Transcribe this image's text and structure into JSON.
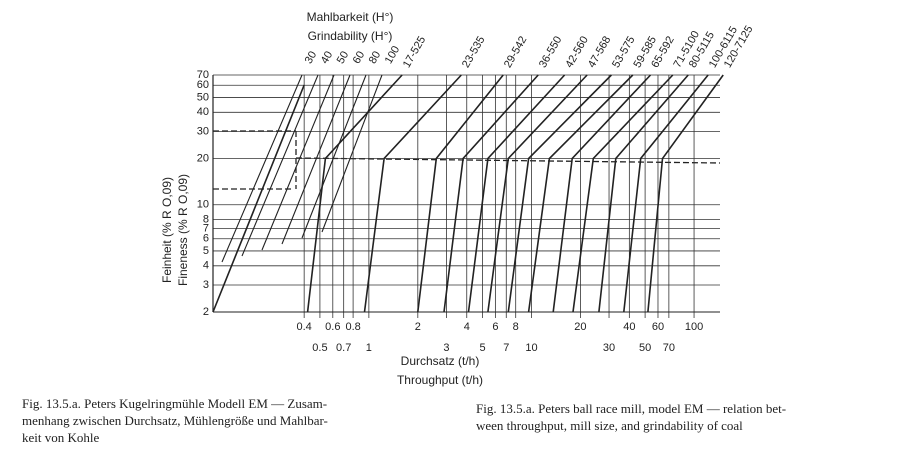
{
  "chart_data": {
    "type": "line",
    "title": "Mahlbarkeit (H°)",
    "subtitle": "Grindability (H°)",
    "y_label": "Feinheit (% R O,09)",
    "y_label_2": "Fineness (% R O,09)",
    "x_label": "Durchsatz (t/h)",
    "x_label_2": "Throughput (t/h)",
    "log_x": true,
    "log_y": true,
    "grid": true,
    "color": "#222",
    "xlim": [
      0.11,
      155
    ],
    "ylim": [
      2,
      70
    ],
    "xticks": [
      0.4,
      0.5,
      0.6,
      0.7,
      0.8,
      1,
      2,
      3,
      4,
      5,
      6,
      7,
      8,
      10,
      20,
      30,
      40,
      50,
      60,
      70,
      100
    ],
    "yticks": [
      2,
      3,
      4,
      5,
      6,
      7,
      8,
      10,
      20,
      30,
      40,
      50,
      60,
      70
    ],
    "grindability_lines": [
      "30",
      "40",
      "50",
      "60",
      "80",
      "100"
    ],
    "series": [
      {
        "name": "17-525",
        "x": [
          0.42,
          0.54,
          1.6
        ],
        "values": [
          2,
          20,
          70
        ]
      },
      {
        "name": "23-535",
        "x": [
          0.94,
          1.24,
          3.7
        ],
        "values": [
          2,
          20,
          70
        ]
      },
      {
        "name": "29-542",
        "x": [
          2.0,
          2.6,
          6.7
        ],
        "values": [
          2,
          20,
          70
        ]
      },
      {
        "name": "36-550",
        "x": [
          2.9,
          3.8,
          11
        ],
        "values": [
          2,
          20,
          70
        ]
      },
      {
        "name": "42-560",
        "x": [
          4.1,
          5.4,
          16
        ],
        "values": [
          2,
          20,
          70
        ]
      },
      {
        "name": "47-568",
        "x": [
          5.4,
          7.2,
          22
        ],
        "values": [
          2,
          20,
          70
        ]
      },
      {
        "name": "53-575",
        "x": [
          7.2,
          9.6,
          31
        ],
        "values": [
          2,
          20,
          70
        ]
      },
      {
        "name": "59-585",
        "x": [
          9.6,
          12.9,
          42
        ],
        "values": [
          2,
          20,
          70
        ]
      },
      {
        "name": "65-592",
        "x": [
          13.6,
          17.8,
          54
        ],
        "values": [
          2,
          20,
          70
        ]
      },
      {
        "name": "71-5100",
        "x": [
          18,
          24,
          74
        ],
        "values": [
          2,
          20,
          70
        ]
      },
      {
        "name": "80-5115",
        "x": [
          26,
          33,
          92
        ],
        "values": [
          2,
          20,
          70
        ]
      },
      {
        "name": "100-6115",
        "x": [
          37,
          47,
          122
        ],
        "values": [
          2,
          20,
          70
        ]
      },
      {
        "name": "120-7125",
        "x": [
          52,
          64,
          151
        ],
        "values": [
          2,
          20,
          70
        ]
      }
    ]
  },
  "caption_de": [
    "Fig. 13.5.a.  Peters Kugelringmühle Modell EM — Zusam-",
    "menhang zwischen Durchsatz, Mühlengröße und Mahlbar-",
    "keit von Kohle"
  ],
  "caption_en": [
    "Fig. 13.5.a.  Peters ball race mill, model EM — relation bet-",
    "ween throughput, mill size, and grindability of coal"
  ]
}
